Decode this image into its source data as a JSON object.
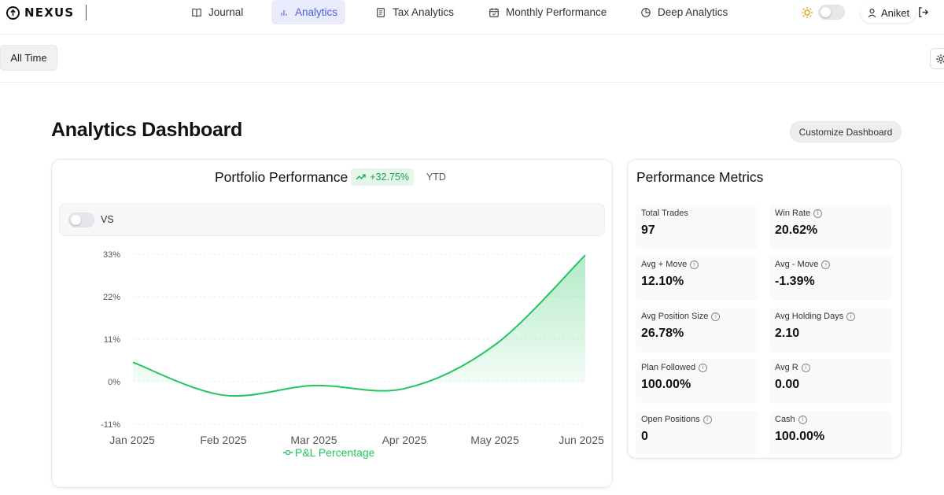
{
  "brand": {
    "name": "NEXUS"
  },
  "nav": [
    {
      "label": "Journal",
      "icon": "book-icon"
    },
    {
      "label": "Analytics",
      "icon": "bar-chart-icon",
      "active": true
    },
    {
      "label": "Tax Analytics",
      "icon": "receipt-icon"
    },
    {
      "label": "Monthly Performance",
      "icon": "calendar-icon"
    },
    {
      "label": "Deep Analytics",
      "icon": "pie-chart-icon"
    }
  ],
  "user": {
    "name": "Aniket"
  },
  "filters": {
    "range": "All Time"
  },
  "page": {
    "title": "Analytics Dashboard",
    "customize_label": "Customize Dashboard"
  },
  "portfolio": {
    "title": "Portfolio Performance",
    "change": "+32.75%",
    "period": "YTD",
    "compare_label": "VS",
    "accent": "#22c55e"
  },
  "chart_data": {
    "type": "area",
    "title": "Portfolio Performance",
    "categories": [
      "Jan 2025",
      "Feb 2025",
      "Mar 2025",
      "Apr 2025",
      "May 2025",
      "Jun 2025"
    ],
    "series": [
      {
        "name": "P&L Percentage",
        "values": [
          5,
          -3.5,
          -1,
          -1.8,
          9.5,
          32.75
        ]
      }
    ],
    "y_ticks": [
      "33%",
      "22%",
      "11%",
      "0%",
      "-11%"
    ],
    "y_tick_values": [
      33,
      22,
      11,
      0,
      -11
    ],
    "ylim": [
      -11,
      33
    ],
    "legend": "bottom-center",
    "grid": true
  },
  "metrics": {
    "title": "Performance Metrics",
    "items": [
      {
        "label": "Total Trades",
        "value": "97",
        "info": false
      },
      {
        "label": "Win Rate",
        "value": "20.62%",
        "info": true
      },
      {
        "label": "Avg + Move",
        "value": "12.10%",
        "info": true
      },
      {
        "label": "Avg - Move",
        "value": "-1.39%",
        "info": true
      },
      {
        "label": "Avg Position Size",
        "value": "26.78%",
        "info": true
      },
      {
        "label": "Avg Holding Days",
        "value": "2.10",
        "info": true
      },
      {
        "label": "Plan Followed",
        "value": "100.00%",
        "info": true
      },
      {
        "label": "Avg R",
        "value": "0.00",
        "info": true
      },
      {
        "label": "Open Positions",
        "value": "0",
        "info": true
      },
      {
        "label": "Cash",
        "value": "100.00%",
        "info": true
      }
    ]
  }
}
